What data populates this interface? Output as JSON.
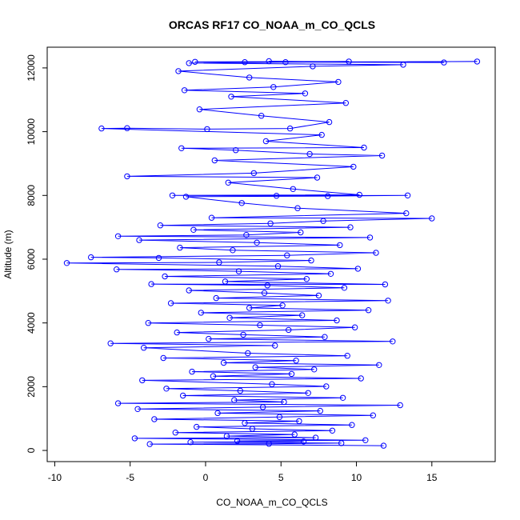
{
  "chart_data": {
    "type": "line",
    "title": "ORCAS RF17 CO_NOAA_m_CO_QCLS",
    "xlabel": "CO_NOAA_m_CO_QCLS",
    "ylabel": "Altitude (m)",
    "xlim": [
      -10.5,
      19.2
    ],
    "ylim": [
      -350,
      12650
    ],
    "x_ticks": [
      -10,
      -5,
      0,
      5,
      10,
      15
    ],
    "y_ticks": [
      0,
      2000,
      4000,
      6000,
      8000,
      10000,
      12000
    ],
    "x_tick_labels": [
      "-10",
      "-5",
      "0",
      "5",
      "10",
      "15"
    ],
    "y_tick_labels": [
      "0",
      "2000",
      "4000",
      "6000",
      "8000",
      "10000",
      "12000"
    ],
    "series_color": "#0000ff",
    "marker": "open-circle",
    "grid": false,
    "legend": "none",
    "series": [
      {
        "values_note": "",
        "points": [
          [
            11.8,
            150
          ],
          [
            -3.7,
            200
          ],
          [
            4.2,
            210
          ],
          [
            9.0,
            230
          ],
          [
            -1.0,
            260
          ],
          [
            6.5,
            280
          ],
          [
            2.1,
            300
          ],
          [
            10.6,
            320
          ],
          [
            -4.7,
            380
          ],
          [
            7.3,
            400
          ],
          [
            1.4,
            450
          ],
          [
            5.9,
            500
          ],
          [
            -2.0,
            560
          ],
          [
            8.4,
            620
          ],
          [
            3.1,
            680
          ],
          [
            -0.6,
            740
          ],
          [
            9.7,
            800
          ],
          [
            2.6,
            860
          ],
          [
            6.2,
            920
          ],
          [
            -3.4,
            980
          ],
          [
            4.9,
            1050
          ],
          [
            11.1,
            1100
          ],
          [
            0.8,
            1170
          ],
          [
            7.6,
            1240
          ],
          [
            -4.5,
            1300
          ],
          [
            3.8,
            1360
          ],
          [
            12.9,
            1420
          ],
          [
            -5.8,
            1480
          ],
          [
            5.2,
            1520
          ],
          [
            1.9,
            1580
          ],
          [
            9.1,
            1650
          ],
          [
            -1.5,
            1720
          ],
          [
            6.8,
            1800
          ],
          [
            2.3,
            1870
          ],
          [
            -2.6,
            1940
          ],
          [
            8.0,
            2010
          ],
          [
            4.4,
            2080
          ],
          [
            -4.2,
            2200
          ],
          [
            10.3,
            2260
          ],
          [
            0.5,
            2330
          ],
          [
            5.7,
            2400
          ],
          [
            -0.9,
            2470
          ],
          [
            7.2,
            2540
          ],
          [
            3.3,
            2610
          ],
          [
            11.5,
            2680
          ],
          [
            1.2,
            2750
          ],
          [
            6.0,
            2820
          ],
          [
            -2.8,
            2900
          ],
          [
            9.4,
            2970
          ],
          [
            2.8,
            3050
          ],
          [
            -4.1,
            3220
          ],
          [
            4.6,
            3290
          ],
          [
            -6.3,
            3360
          ],
          [
            12.4,
            3420
          ],
          [
            0.2,
            3500
          ],
          [
            7.9,
            3560
          ],
          [
            2.5,
            3630
          ],
          [
            -1.9,
            3700
          ],
          [
            5.5,
            3780
          ],
          [
            9.9,
            3860
          ],
          [
            3.6,
            3930
          ],
          [
            -3.8,
            4000
          ],
          [
            8.7,
            4080
          ],
          [
            1.6,
            4160
          ],
          [
            6.4,
            4240
          ],
          [
            -0.3,
            4320
          ],
          [
            10.8,
            4400
          ],
          [
            2.9,
            4470
          ],
          [
            5.1,
            4550
          ],
          [
            -2.3,
            4620
          ],
          [
            12.1,
            4700
          ],
          [
            0.7,
            4780
          ],
          [
            7.5,
            4860
          ],
          [
            3.9,
            4940
          ],
          [
            -1.1,
            5020
          ],
          [
            9.2,
            5100
          ],
          [
            4.1,
            5180
          ],
          [
            -3.6,
            5220
          ],
          [
            11.9,
            5210
          ],
          [
            1.3,
            5300
          ],
          [
            6.7,
            5380
          ],
          [
            -2.7,
            5460
          ],
          [
            8.3,
            5540
          ],
          [
            2.2,
            5620
          ],
          [
            -5.9,
            5680
          ],
          [
            10.1,
            5700
          ],
          [
            4.8,
            5780
          ],
          [
            -9.2,
            5880
          ],
          [
            0.9,
            5900
          ],
          [
            7.0,
            5960
          ],
          [
            -3.1,
            6040
          ],
          [
            -7.6,
            6060
          ],
          [
            5.4,
            6120
          ],
          [
            11.3,
            6200
          ],
          [
            1.8,
            6280
          ],
          [
            -1.7,
            6360
          ],
          [
            8.9,
            6440
          ],
          [
            3.4,
            6520
          ],
          [
            -4.4,
            6600
          ],
          [
            10.9,
            6680
          ],
          [
            -5.8,
            6720
          ],
          [
            2.7,
            6760
          ],
          [
            6.3,
            6840
          ],
          [
            -0.8,
            6920
          ],
          [
            9.6,
            7000
          ],
          [
            -3.0,
            7060
          ],
          [
            4.3,
            7120
          ],
          [
            7.8,
            7200
          ],
          [
            15.0,
            7280
          ],
          [
            0.4,
            7300
          ],
          [
            13.3,
            7440
          ],
          [
            6.1,
            7600
          ],
          [
            2.4,
            7760
          ],
          [
            -1.3,
            7960
          ],
          [
            8.1,
            7980
          ],
          [
            13.4,
            8000
          ],
          [
            4.7,
            7990
          ],
          [
            -2.2,
            8000
          ],
          [
            10.2,
            8020
          ],
          [
            5.8,
            8200
          ],
          [
            1.5,
            8400
          ],
          [
            7.4,
            8560
          ],
          [
            -5.2,
            8600
          ],
          [
            3.2,
            8700
          ],
          [
            9.8,
            8900
          ],
          [
            0.6,
            9100
          ],
          [
            11.7,
            9250
          ],
          [
            6.9,
            9300
          ],
          [
            2.0,
            9420
          ],
          [
            -1.6,
            9480
          ],
          [
            10.5,
            9500
          ],
          [
            4.0,
            9700
          ],
          [
            7.7,
            9900
          ],
          [
            -6.9,
            10100
          ],
          [
            -5.2,
            10110
          ],
          [
            0.1,
            10080
          ],
          [
            5.6,
            10100
          ],
          [
            8.2,
            10300
          ],
          [
            3.7,
            10500
          ],
          [
            -0.4,
            10700
          ],
          [
            9.3,
            10900
          ],
          [
            1.7,
            11100
          ],
          [
            6.6,
            11200
          ],
          [
            -1.4,
            11300
          ],
          [
            4.5,
            11400
          ],
          [
            8.8,
            11560
          ],
          [
            2.9,
            11700
          ],
          [
            -1.8,
            11900
          ],
          [
            7.1,
            12050
          ],
          [
            13.1,
            12100
          ],
          [
            -1.1,
            12150
          ],
          [
            5.3,
            12180
          ],
          [
            18.0,
            12200
          ],
          [
            2.6,
            12180
          ],
          [
            9.5,
            12200
          ],
          [
            -0.7,
            12190
          ],
          [
            15.8,
            12170
          ],
          [
            4.2,
            12210
          ]
        ]
      }
    ]
  }
}
